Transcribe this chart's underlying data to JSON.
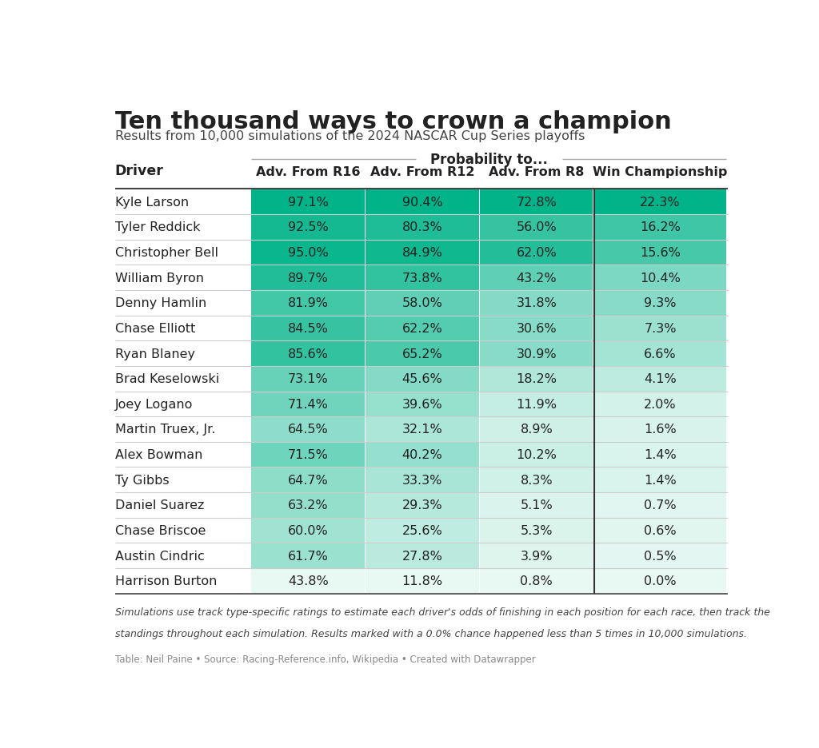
{
  "title": "Ten thousand ways to crown a champion",
  "subtitle": "Results from 10,000 simulations of the 2024 NASCAR Cup Series playoffs",
  "prob_label": "Probability to...",
  "col_headers": [
    "Driver",
    "Adv. From R16",
    "Adv. From R12",
    "Adv. From R8",
    "Win Championship"
  ],
  "drivers": [
    "Kyle Larson",
    "Tyler Reddick",
    "Christopher Bell",
    "William Byron",
    "Denny Hamlin",
    "Chase Elliott",
    "Ryan Blaney",
    "Brad Keselowski",
    "Joey Logano",
    "Martin Truex, Jr.",
    "Alex Bowman",
    "Ty Gibbs",
    "Daniel Suarez",
    "Chase Briscoe",
    "Austin Cindric",
    "Harrison Burton"
  ],
  "adv_r16": [
    97.1,
    92.5,
    95.0,
    89.7,
    81.9,
    84.5,
    85.6,
    73.1,
    71.4,
    64.5,
    71.5,
    64.7,
    63.2,
    60.0,
    61.7,
    43.8
  ],
  "adv_r12": [
    90.4,
    80.3,
    84.9,
    73.8,
    58.0,
    62.2,
    65.2,
    45.6,
    39.6,
    32.1,
    40.2,
    33.3,
    29.3,
    25.6,
    27.8,
    11.8
  ],
  "adv_r8": [
    72.8,
    56.0,
    62.0,
    43.2,
    31.8,
    30.6,
    30.9,
    18.2,
    11.9,
    8.9,
    10.2,
    8.3,
    5.1,
    5.3,
    3.9,
    0.8
  ],
  "win_champ": [
    22.3,
    16.2,
    15.6,
    10.4,
    9.3,
    7.3,
    6.6,
    4.1,
    2.0,
    1.6,
    1.4,
    1.4,
    0.7,
    0.6,
    0.5,
    0.0
  ],
  "footnote1": "Simulations use track type-specific ratings to estimate each driver's odds of finishing in each position for each race, then track the",
  "footnote2": "standings throughout each simulation. Results marked with a 0.0% chance happened less than 5 times in 10,000 simulations.",
  "source": "Table: Neil Paine • Source: Racing-Reference.info, Wikipedia • Created with Datawrapper",
  "color_min": "#e8f8f3",
  "color_max": "#00b389",
  "col_divider_color": "#333333",
  "row_line_color": "#cccccc",
  "bg_color": "#ffffff",
  "text_color": "#222222"
}
